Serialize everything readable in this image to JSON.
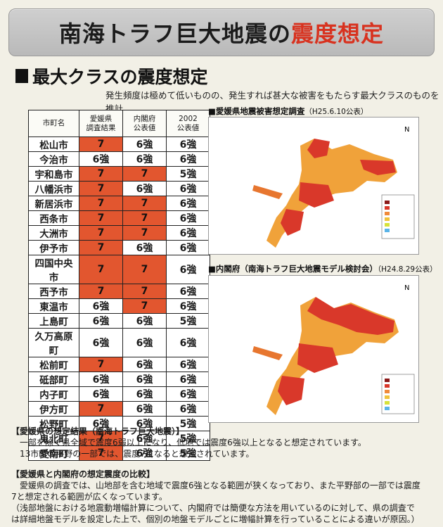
{
  "banner": {
    "title_main": "南海トラフ巨大地震の",
    "title_accent": "震度想定"
  },
  "section": {
    "heading": "最大クラスの震度想定",
    "subtitle": "発生頻度は極めて低いものの、発生すれば甚大な被害をもたらす最大クラスのものを推計"
  },
  "table": {
    "headers": [
      {
        "line1": "市町名",
        "line2": ""
      },
      {
        "line1": "愛媛県",
        "line2": "調査結果"
      },
      {
        "line1": "内閣府",
        "line2": "公表値"
      },
      {
        "line1": "2002",
        "line2": "公表値"
      }
    ],
    "rows": [
      {
        "name": "松山市",
        "ehime": "7",
        "cabinet": "6強",
        "y2002": "6強"
      },
      {
        "name": "今治市",
        "ehime": "6強",
        "cabinet": "6強",
        "y2002": "6強"
      },
      {
        "name": "宇和島市",
        "ehime": "7",
        "cabinet": "7",
        "y2002": "5強"
      },
      {
        "name": "八幡浜市",
        "ehime": "7",
        "cabinet": "6強",
        "y2002": "6強"
      },
      {
        "name": "新居浜市",
        "ehime": "7",
        "cabinet": "7",
        "y2002": "6強"
      },
      {
        "name": "西条市",
        "ehime": "7",
        "cabinet": "7",
        "y2002": "6強"
      },
      {
        "name": "大洲市",
        "ehime": "7",
        "cabinet": "7",
        "y2002": "6強"
      },
      {
        "name": "伊予市",
        "ehime": "7",
        "cabinet": "6強",
        "y2002": "6強"
      },
      {
        "name": "四国中央市",
        "ehime": "7",
        "cabinet": "7",
        "y2002": "6強"
      },
      {
        "name": "西予市",
        "ehime": "7",
        "cabinet": "7",
        "y2002": "6強"
      },
      {
        "name": "東温市",
        "ehime": "6強",
        "cabinet": "7",
        "y2002": "6強"
      },
      {
        "name": "上島町",
        "ehime": "6強",
        "cabinet": "6強",
        "y2002": "5強"
      },
      {
        "name": "久万高原町",
        "ehime": "6強",
        "cabinet": "6強",
        "y2002": "6強"
      },
      {
        "name": "松前町",
        "ehime": "7",
        "cabinet": "6強",
        "y2002": "6強"
      },
      {
        "name": "砥部町",
        "ehime": "6強",
        "cabinet": "6強",
        "y2002": "6強"
      },
      {
        "name": "内子町",
        "ehime": "6強",
        "cabinet": "6強",
        "y2002": "6強"
      },
      {
        "name": "伊方町",
        "ehime": "7",
        "cabinet": "6強",
        "y2002": "6強"
      },
      {
        "name": "松野町",
        "ehime": "6強",
        "cabinet": "6強",
        "y2002": "5強"
      },
      {
        "name": "鬼北町",
        "ehime": "7",
        "cabinet": "6強",
        "y2002": "5強"
      },
      {
        "name": "愛南町",
        "ehime": "7",
        "cabinet": "6強",
        "y2002": "5強"
      }
    ]
  },
  "maps": [
    {
      "caption": "■愛媛県地震被害想定調査",
      "caption_date": "（H25.6.10公表）"
    },
    {
      "caption": "■内閣府（南海トラフ巨大地震モデル検討会）",
      "caption_date": "（H24.8.29公表）"
    }
  ],
  "notes": {
    "block1": {
      "heading": "【愛媛県の想定結果（南海トラフ巨大地震）】",
      "lines": [
        "一部を除く県全域で震度6弱以上になり、低地では震度6強以上となると想定されています。",
        "13市町の平野の一部では、震度7になると想定されています。"
      ]
    },
    "block2": {
      "heading": "【愛媛県と内閣府の想定震度の比較】",
      "lines": [
        "愛媛県の調査では、山地部を含む地域で震度6強となる範囲が狭くなっており、また平野部の一部では震度",
        "7と想定される範囲が広くなっています。",
        "（浅部地盤における地震動増幅計算について、内閣府では簡便な方法を用いているのに対して、県の調査で",
        "は詳細地盤モデルを設定した上で、個別の地盤モデルごとに増幅計算を行っていることによる違いが原因。）"
      ]
    }
  },
  "colors": {
    "accent_red": "#d8321f",
    "cell_highlight": "#e2562f",
    "map_orange": "#f0a23a",
    "map_red": "#d9382a"
  }
}
